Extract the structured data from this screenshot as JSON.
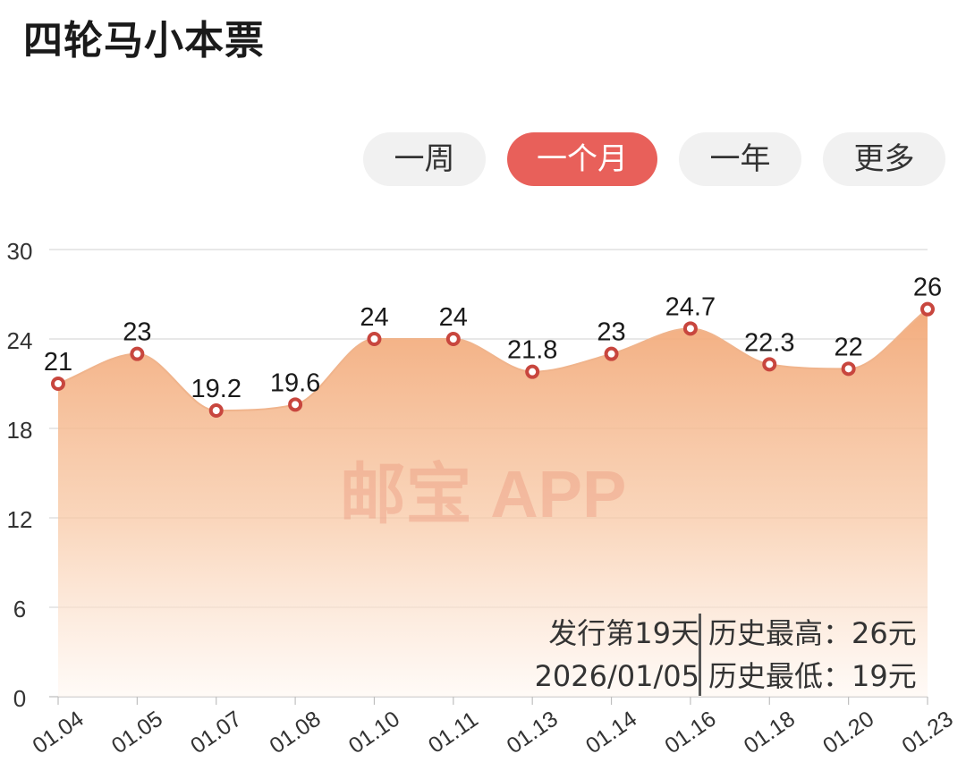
{
  "header": {
    "title": "四轮马小本票"
  },
  "range_tabs": [
    {
      "label": "一周",
      "active": false
    },
    {
      "label": "一个月",
      "active": true
    },
    {
      "label": "一年",
      "active": false
    },
    {
      "label": "更多",
      "active": false
    }
  ],
  "watermark": "邮宝 APP",
  "info": {
    "issue_day": "发行第19天",
    "date": "2026/01/05",
    "max_label": "历史最高：",
    "max_value": "26元",
    "min_label": "历史最低：",
    "min_value": "19元"
  },
  "colors": {
    "accent": "#e8605a",
    "point": "#c8463e",
    "area_top": "#f2a877",
    "area_bottom": "#ffffff",
    "grid": "#d9d9d9"
  },
  "chart_data": {
    "type": "area",
    "categories": [
      "01.04",
      "01.05",
      "01.07",
      "01.08",
      "01.10",
      "01.11",
      "01.13",
      "01.14",
      "01.16",
      "01.18",
      "01.20",
      "01.23"
    ],
    "values": [
      21,
      23,
      19.2,
      19.6,
      24,
      24,
      21.8,
      23,
      24.7,
      22.3,
      22,
      26
    ],
    "value_labels": [
      "21",
      "23",
      "19.2",
      "19.6",
      "24",
      "24",
      "21.8",
      "23",
      "24.7",
      "22.3",
      "22",
      "26"
    ],
    "y_ticks": [
      "0",
      "6",
      "12",
      "18",
      "24",
      "30"
    ],
    "ylim": [
      0,
      30
    ],
    "grid": true,
    "smooth": true
  }
}
